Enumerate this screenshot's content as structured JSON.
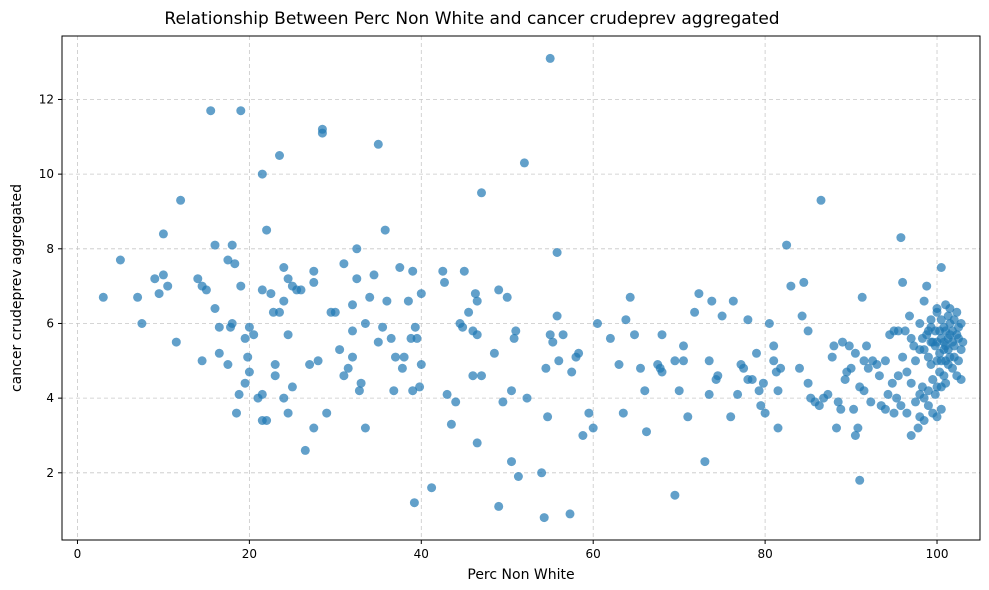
{
  "chart_data": {
    "type": "scatter",
    "title": "Relationship Between Perc Non White and cancer crudeprev aggregated",
    "xlabel": "Perc Non White",
    "ylabel": "cancer crudeprev aggregated",
    "xlim": [
      -1.8,
      105
    ],
    "ylim": [
      0.2,
      13.7
    ],
    "xticks": [
      0,
      20,
      40,
      60,
      80,
      100
    ],
    "yticks": [
      2,
      4,
      6,
      8,
      10,
      12
    ],
    "grid": true,
    "color": "#1f77b4",
    "points": [
      [
        3,
        6.7
      ],
      [
        5,
        7.7
      ],
      [
        7,
        6.7
      ],
      [
        7.5,
        6
      ],
      [
        9,
        7.2
      ],
      [
        9.5,
        6.8
      ],
      [
        10,
        7.3
      ],
      [
        10,
        8.4
      ],
      [
        10.5,
        7
      ],
      [
        11.5,
        5.5
      ],
      [
        12,
        9.3
      ],
      [
        14,
        7.2
      ],
      [
        14.5,
        7
      ],
      [
        14.5,
        5
      ],
      [
        15,
        6.9
      ],
      [
        15.5,
        11.7
      ],
      [
        16,
        8.1
      ],
      [
        16,
        6.4
      ],
      [
        16.5,
        5.9
      ],
      [
        16.5,
        5.2
      ],
      [
        17.5,
        4.9
      ],
      [
        17.5,
        7.7
      ],
      [
        17.8,
        5.9
      ],
      [
        18,
        6
      ],
      [
        18,
        8.1
      ],
      [
        18.3,
        7.6
      ],
      [
        18.5,
        3.6
      ],
      [
        18.8,
        4.1
      ],
      [
        19,
        11.7
      ],
      [
        19,
        7
      ],
      [
        19.5,
        4.4
      ],
      [
        19.5,
        5.6
      ],
      [
        19.8,
        5.1
      ],
      [
        20,
        4.7
      ],
      [
        20,
        5.9
      ],
      [
        20.5,
        5.7
      ],
      [
        21,
        4
      ],
      [
        21.5,
        10
      ],
      [
        21.5,
        6.9
      ],
      [
        21.5,
        4.1
      ],
      [
        21.5,
        3.4
      ],
      [
        22,
        8.5
      ],
      [
        22,
        3.4
      ],
      [
        22.5,
        6.8
      ],
      [
        22.8,
        6.3
      ],
      [
        23,
        4.9
      ],
      [
        23,
        4.6
      ],
      [
        23.5,
        10.5
      ],
      [
        23.5,
        6.3
      ],
      [
        24,
        7.5
      ],
      [
        24,
        6.6
      ],
      [
        24,
        4
      ],
      [
        24.5,
        7.2
      ],
      [
        24.5,
        5.7
      ],
      [
        24.5,
        3.6
      ],
      [
        25,
        4.3
      ],
      [
        25,
        7
      ],
      [
        25.5,
        6.9
      ],
      [
        26,
        6.9
      ],
      [
        26.5,
        2.6
      ],
      [
        27,
        4.9
      ],
      [
        27.5,
        7.4
      ],
      [
        27.5,
        7.1
      ],
      [
        27.5,
        3.2
      ],
      [
        28,
        5
      ],
      [
        28.5,
        11.2
      ],
      [
        28.5,
        11.1
      ],
      [
        29,
        3.6
      ],
      [
        29.5,
        6.3
      ],
      [
        30,
        6.3
      ],
      [
        30.5,
        5.3
      ],
      [
        31,
        7.6
      ],
      [
        31,
        4.6
      ],
      [
        31.5,
        4.8
      ],
      [
        32,
        5.8
      ],
      [
        32,
        6.5
      ],
      [
        32,
        5.1
      ],
      [
        32.5,
        8
      ],
      [
        32.5,
        7.2
      ],
      [
        32.8,
        4.2
      ],
      [
        33,
        4.4
      ],
      [
        33.5,
        6
      ],
      [
        33.5,
        3.2
      ],
      [
        34,
        6.7
      ],
      [
        34.5,
        7.3
      ],
      [
        35,
        10.8
      ],
      [
        35,
        5.5
      ],
      [
        35.5,
        5.9
      ],
      [
        35.8,
        8.5
      ],
      [
        36,
        6.6
      ],
      [
        36.5,
        5.6
      ],
      [
        36.8,
        4.2
      ],
      [
        37,
        5.1
      ],
      [
        37.5,
        7.5
      ],
      [
        37.8,
        4.8
      ],
      [
        38,
        5.1
      ],
      [
        38.5,
        6.6
      ],
      [
        38.8,
        5.6
      ],
      [
        39,
        7.4
      ],
      [
        39,
        4.2
      ],
      [
        39.2,
        1.2
      ],
      [
        39.3,
        5.9
      ],
      [
        39.5,
        5.6
      ],
      [
        39.8,
        4.3
      ],
      [
        40,
        4.9
      ],
      [
        40,
        6.8
      ],
      [
        41.2,
        1.6
      ],
      [
        42.5,
        7.4
      ],
      [
        42.7,
        7.1
      ],
      [
        43,
        4.1
      ],
      [
        43.5,
        3.3
      ],
      [
        44,
        3.9
      ],
      [
        44.5,
        6
      ],
      [
        44.8,
        5.9
      ],
      [
        45,
        7.4
      ],
      [
        45.5,
        6.3
      ],
      [
        46,
        5.8
      ],
      [
        46,
        4.6
      ],
      [
        46.3,
        6.8
      ],
      [
        46.5,
        6.6
      ],
      [
        46.5,
        5.7
      ],
      [
        46.5,
        2.8
      ],
      [
        47,
        9.5
      ],
      [
        47,
        4.6
      ],
      [
        48.5,
        5.2
      ],
      [
        49,
        6.9
      ],
      [
        49,
        1.1
      ],
      [
        49.5,
        3.9
      ],
      [
        50,
        6.7
      ],
      [
        50.5,
        4.2
      ],
      [
        50.5,
        2.3
      ],
      [
        50.8,
        5.6
      ],
      [
        51,
        5.8
      ],
      [
        51.3,
        1.9
      ],
      [
        52,
        10.3
      ],
      [
        52.3,
        4
      ],
      [
        54,
        2
      ],
      [
        54.3,
        0.8
      ],
      [
        54.5,
        4.8
      ],
      [
        54.7,
        3.5
      ],
      [
        55,
        13.1
      ],
      [
        55,
        5.7
      ],
      [
        55.3,
        5.5
      ],
      [
        55.8,
        7.9
      ],
      [
        55.8,
        6.2
      ],
      [
        56,
        5
      ],
      [
        56.5,
        5.7
      ],
      [
        57.3,
        0.9
      ],
      [
        57.5,
        4.7
      ],
      [
        58,
        5.1
      ],
      [
        58.3,
        5.2
      ],
      [
        58.8,
        3
      ],
      [
        59.5,
        3.6
      ],
      [
        60,
        3.2
      ],
      [
        60.5,
        6
      ],
      [
        62,
        5.6
      ],
      [
        63,
        4.9
      ],
      [
        63.5,
        3.6
      ],
      [
        63.8,
        6.1
      ],
      [
        64.3,
        6.7
      ],
      [
        64.8,
        5.7
      ],
      [
        65.5,
        4.8
      ],
      [
        66,
        4.2
      ],
      [
        66.2,
        3.1
      ],
      [
        67.5,
        4.9
      ],
      [
        67.8,
        4.8
      ],
      [
        68,
        4.7
      ],
      [
        68,
        5.7
      ],
      [
        69.5,
        5
      ],
      [
        69.5,
        1.4
      ],
      [
        70,
        4.2
      ],
      [
        70.5,
        5.4
      ],
      [
        70.5,
        5
      ],
      [
        71,
        3.5
      ],
      [
        71.8,
        6.3
      ],
      [
        72.3,
        6.8
      ],
      [
        73,
        2.3
      ],
      [
        73.5,
        5
      ],
      [
        73.5,
        4.1
      ],
      [
        73.8,
        6.6
      ],
      [
        74.3,
        4.5
      ],
      [
        74.5,
        4.6
      ],
      [
        75,
        6.2
      ],
      [
        76,
        3.5
      ],
      [
        76.3,
        6.6
      ],
      [
        76.8,
        4.1
      ],
      [
        77.2,
        4.9
      ],
      [
        77.5,
        4.8
      ],
      [
        78,
        6.1
      ],
      [
        78,
        4.5
      ],
      [
        78.5,
        4.5
      ],
      [
        79,
        5.2
      ],
      [
        79.3,
        4.2
      ],
      [
        79.5,
        3.8
      ],
      [
        79.8,
        4.4
      ],
      [
        80,
        3.6
      ],
      [
        80.5,
        6
      ],
      [
        81,
        5.4
      ],
      [
        81,
        5
      ],
      [
        81.3,
        4.7
      ],
      [
        81.5,
        3.2
      ],
      [
        81.5,
        4.2
      ],
      [
        81.8,
        4.8
      ],
      [
        82.5,
        8.1
      ],
      [
        83,
        7
      ],
      [
        84,
        4.8
      ],
      [
        84.3,
        6.2
      ],
      [
        84.5,
        7.1
      ],
      [
        85,
        5.8
      ],
      [
        85,
        4.4
      ],
      [
        85.3,
        4
      ],
      [
        85.8,
        3.9
      ],
      [
        86.3,
        3.8
      ],
      [
        86.5,
        9.3
      ],
      [
        86.8,
        4
      ],
      [
        87.3,
        4.1
      ],
      [
        87.8,
        5.1
      ],
      [
        88,
        5.4
      ],
      [
        88.3,
        3.2
      ],
      [
        88.5,
        3.9
      ],
      [
        88.8,
        3.7
      ],
      [
        89,
        5.5
      ],
      [
        89.3,
        4.5
      ],
      [
        89.5,
        4.7
      ],
      [
        89.8,
        5.4
      ],
      [
        90,
        4.8
      ],
      [
        90.3,
        3.7
      ],
      [
        90.5,
        5.2
      ],
      [
        90.5,
        3
      ],
      [
        90.8,
        3.2
      ],
      [
        91,
        4.3
      ],
      [
        91,
        1.8
      ],
      [
        91.3,
        6.7
      ],
      [
        91.5,
        4.2
      ],
      [
        91.5,
        5
      ],
      [
        91.8,
        5.4
      ],
      [
        92,
        4.8
      ],
      [
        92.3,
        3.9
      ],
      [
        92.5,
        5
      ],
      [
        93,
        4.9
      ],
      [
        93.3,
        4.6
      ],
      [
        93.5,
        3.8
      ],
      [
        94,
        5
      ],
      [
        94,
        3.7
      ],
      [
        94.3,
        4.1
      ],
      [
        94.5,
        5.7
      ],
      [
        94.8,
        4.4
      ],
      [
        95,
        5.8
      ],
      [
        95,
        3.6
      ],
      [
        95.3,
        4
      ],
      [
        95.5,
        5.8
      ],
      [
        95.5,
        4.6
      ],
      [
        95.8,
        8.3
      ],
      [
        95.8,
        3.8
      ],
      [
        96,
        5.1
      ],
      [
        96,
        7.1
      ],
      [
        96.3,
        5.8
      ],
      [
        96.5,
        4.7
      ],
      [
        96.5,
        3.6
      ],
      [
        96.8,
        6.2
      ],
      [
        97,
        5.6
      ],
      [
        97,
        4.4
      ],
      [
        97,
        3
      ],
      [
        97.3,
        5.4
      ],
      [
        97.5,
        5
      ],
      [
        97.5,
        3.9
      ],
      [
        97.8,
        3.2
      ],
      [
        98,
        6
      ],
      [
        98,
        5.3
      ],
      [
        98,
        4.1
      ],
      [
        98,
        3.5
      ],
      [
        98.3,
        5.6
      ],
      [
        98.3,
        4.3
      ],
      [
        98.5,
        6.6
      ],
      [
        98.5,
        5.3
      ],
      [
        98.5,
        4
      ],
      [
        98.5,
        3.4
      ],
      [
        98.8,
        5.7
      ],
      [
        98.8,
        7
      ],
      [
        99,
        5.8
      ],
      [
        99,
        5.1
      ],
      [
        99,
        4.2
      ],
      [
        99,
        3.8
      ],
      [
        99.3,
        6.1
      ],
      [
        99.3,
        5.9
      ],
      [
        99.3,
        5.5
      ],
      [
        99.3,
        4.9
      ],
      [
        99.5,
        5.5
      ],
      [
        99.5,
        4.5
      ],
      [
        99.5,
        3.6
      ],
      [
        99.8,
        5.4
      ],
      [
        99.8,
        5.8
      ],
      [
        99.8,
        4.1
      ],
      [
        100,
        6.4
      ],
      [
        100,
        6.3
      ],
      [
        100,
        5.5
      ],
      [
        100,
        5
      ],
      [
        100,
        4.3
      ],
      [
        100,
        3.5
      ],
      [
        100.3,
        5.8
      ],
      [
        100.3,
        5.2
      ],
      [
        100.3,
        4.7
      ],
      [
        100.5,
        7.5
      ],
      [
        100.5,
        6.1
      ],
      [
        100.5,
        5.6
      ],
      [
        100.5,
        5
      ],
      [
        100.5,
        4.3
      ],
      [
        100.5,
        3.7
      ],
      [
        100.8,
        5.9
      ],
      [
        100.8,
        5.5
      ],
      [
        100.8,
        5.3
      ],
      [
        100.8,
        4.6
      ],
      [
        101,
        6.5
      ],
      [
        101,
        5.8
      ],
      [
        101,
        5.4
      ],
      [
        101,
        5
      ],
      [
        101,
        4.4
      ],
      [
        101.3,
        6.2
      ],
      [
        101.3,
        5.6
      ],
      [
        101.3,
        5.3
      ],
      [
        101.3,
        4.9
      ],
      [
        101.5,
        6
      ],
      [
        101.5,
        5.7
      ],
      [
        101.5,
        5.1
      ],
      [
        101.5,
        6.4
      ],
      [
        101.8,
        5.5
      ],
      [
        101.8,
        5.8
      ],
      [
        101.8,
        4.8
      ],
      [
        102,
        6.1
      ],
      [
        102,
        5.4
      ],
      [
        102,
        5.1
      ],
      [
        102.3,
        6.3
      ],
      [
        102.3,
        5.7
      ],
      [
        102.3,
        4.6
      ],
      [
        102.5,
        5.6
      ],
      [
        102.5,
        5.9
      ],
      [
        102.5,
        5
      ],
      [
        102.8,
        5.3
      ],
      [
        102.8,
        4.5
      ],
      [
        102.8,
        6
      ],
      [
        103,
        5.5
      ]
    ]
  }
}
